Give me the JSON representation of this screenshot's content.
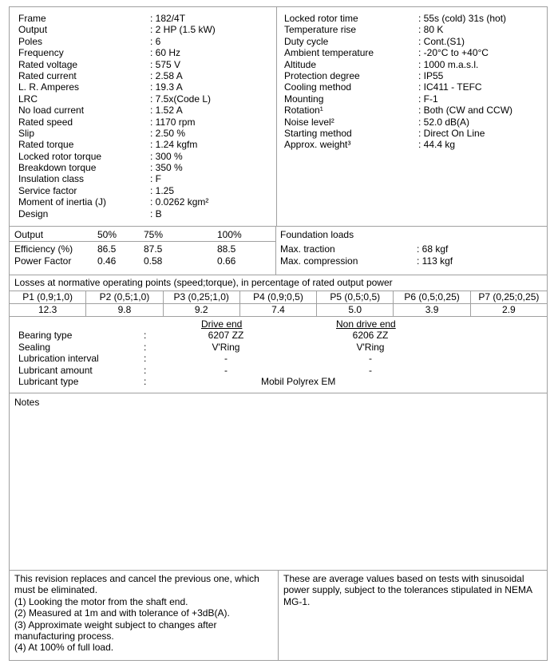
{
  "specs_left": [
    {
      "label": "Frame",
      "value": ": 182/4T"
    },
    {
      "label": "Output",
      "value": ": 2 HP (1.5 kW)"
    },
    {
      "label": "Poles",
      "value": ": 6"
    },
    {
      "label": "Frequency",
      "value": ": 60 Hz"
    },
    {
      "label": "Rated voltage",
      "value": ": 575 V"
    },
    {
      "label": "Rated current",
      "value": ": 2.58 A"
    },
    {
      "label": "L. R. Amperes",
      "value": ": 19.3 A"
    },
    {
      "label": "LRC",
      "value": ": 7.5x(Code L)"
    },
    {
      "label": "No load current",
      "value": ": 1.52 A"
    },
    {
      "label": "Rated speed",
      "value": ": 1170 rpm"
    },
    {
      "label": "Slip",
      "value": ": 2.50 %"
    },
    {
      "label": "Rated torque",
      "value": ": 1.24 kgfm"
    },
    {
      "label": "Locked rotor torque",
      "value": ": 300 %"
    },
    {
      "label": "Breakdown torque",
      "value": ": 350 %"
    },
    {
      "label": "Insulation class",
      "value": ": F"
    },
    {
      "label": "Service factor",
      "value": ": 1.25"
    },
    {
      "label": "Moment of inertia (J)",
      "value": ": 0.0262 kgm²"
    },
    {
      "label": "Design",
      "value": ": B"
    }
  ],
  "specs_right": [
    {
      "label": "Locked rotor time",
      "value": ": 55s (cold) 31s (hot)"
    },
    {
      "label": "Temperature rise",
      "value": ": 80 K"
    },
    {
      "label": "Duty cycle",
      "value": ": Cont.(S1)"
    },
    {
      "label": "Ambient temperature",
      "value": ": -20°C to +40°C"
    },
    {
      "label": "Altitude",
      "value": ": 1000 m.a.s.l."
    },
    {
      "label": "Protection degree",
      "value": ": IP55"
    },
    {
      "label": "Cooling method",
      "value": ": IC411 - TEFC"
    },
    {
      "label": "Mounting",
      "value": ": F-1"
    },
    {
      "label": "Rotation¹",
      "value": ": Both (CW and CCW)"
    },
    {
      "label": "Noise level²",
      "value": ": 52.0 dB(A)"
    },
    {
      "label": "Starting method",
      "value": ": Direct On Line"
    },
    {
      "label": "Approx. weight³",
      "value": ": 44.4 kg"
    }
  ],
  "performance": {
    "header": [
      "Output",
      "50%",
      "75%",
      "100%"
    ],
    "rows": [
      [
        "Efficiency (%)",
        "86.5",
        "87.5",
        "88.5"
      ],
      [
        "Power Factor",
        "0.46",
        "0.58",
        "0.66"
      ]
    ]
  },
  "foundation": {
    "title": "Foundation loads",
    "rows": [
      {
        "label": "Max. traction",
        "value": ": 68 kgf"
      },
      {
        "label": "Max. compression",
        "value": ": 113 kgf"
      }
    ]
  },
  "losses": {
    "title": "Losses at normative operating points (speed;torque), in percentage of rated output power",
    "headers": [
      "P1 (0,9;1,0)",
      "P2 (0,5;1,0)",
      "P3 (0,25;1,0)",
      "P4 (0,9;0,5)",
      "P5 (0,5;0,5)",
      "P6 (0,5;0,25)",
      "P7 (0,25;0,25)"
    ],
    "values": [
      "12.3",
      "9.8",
      "9.2",
      "7.4",
      "5.0",
      "3.9",
      "2.9"
    ]
  },
  "bearings": {
    "drive_end": "Drive end",
    "non_drive_end": "Non drive end",
    "rows": [
      {
        "label": "Bearing type",
        "sep": ":",
        "de": "6207 ZZ",
        "nde": "6206 ZZ"
      },
      {
        "label": "Sealing",
        "sep": ":",
        "de": "V'Ring",
        "nde": "V'Ring"
      },
      {
        "label": "Lubrication interval",
        "sep": ":",
        "de": "-",
        "nde": "-"
      },
      {
        "label": "Lubricant amount",
        "sep": ":",
        "de": "-",
        "nde": "-"
      }
    ],
    "lubricant_type_label": "Lubricant type",
    "lubricant_type_sep": ":",
    "lubricant_type": "Mobil Polyrex EM"
  },
  "notes_title": "Notes",
  "footer": {
    "left": [
      "This revision replaces and cancel the previous one, which",
      "must be eliminated.",
      "(1) Looking the motor from the shaft end.",
      "(2) Measured at 1m and with tolerance of +3dB(A).",
      "(3) Approximate weight subject to changes after",
      "manufacturing process.",
      "(4) At 100% of full load."
    ],
    "right": [
      "These are average values based on tests with sinusoidal",
      "power supply, subject to the tolerances stipulated in NEMA",
      "MG-1."
    ]
  }
}
